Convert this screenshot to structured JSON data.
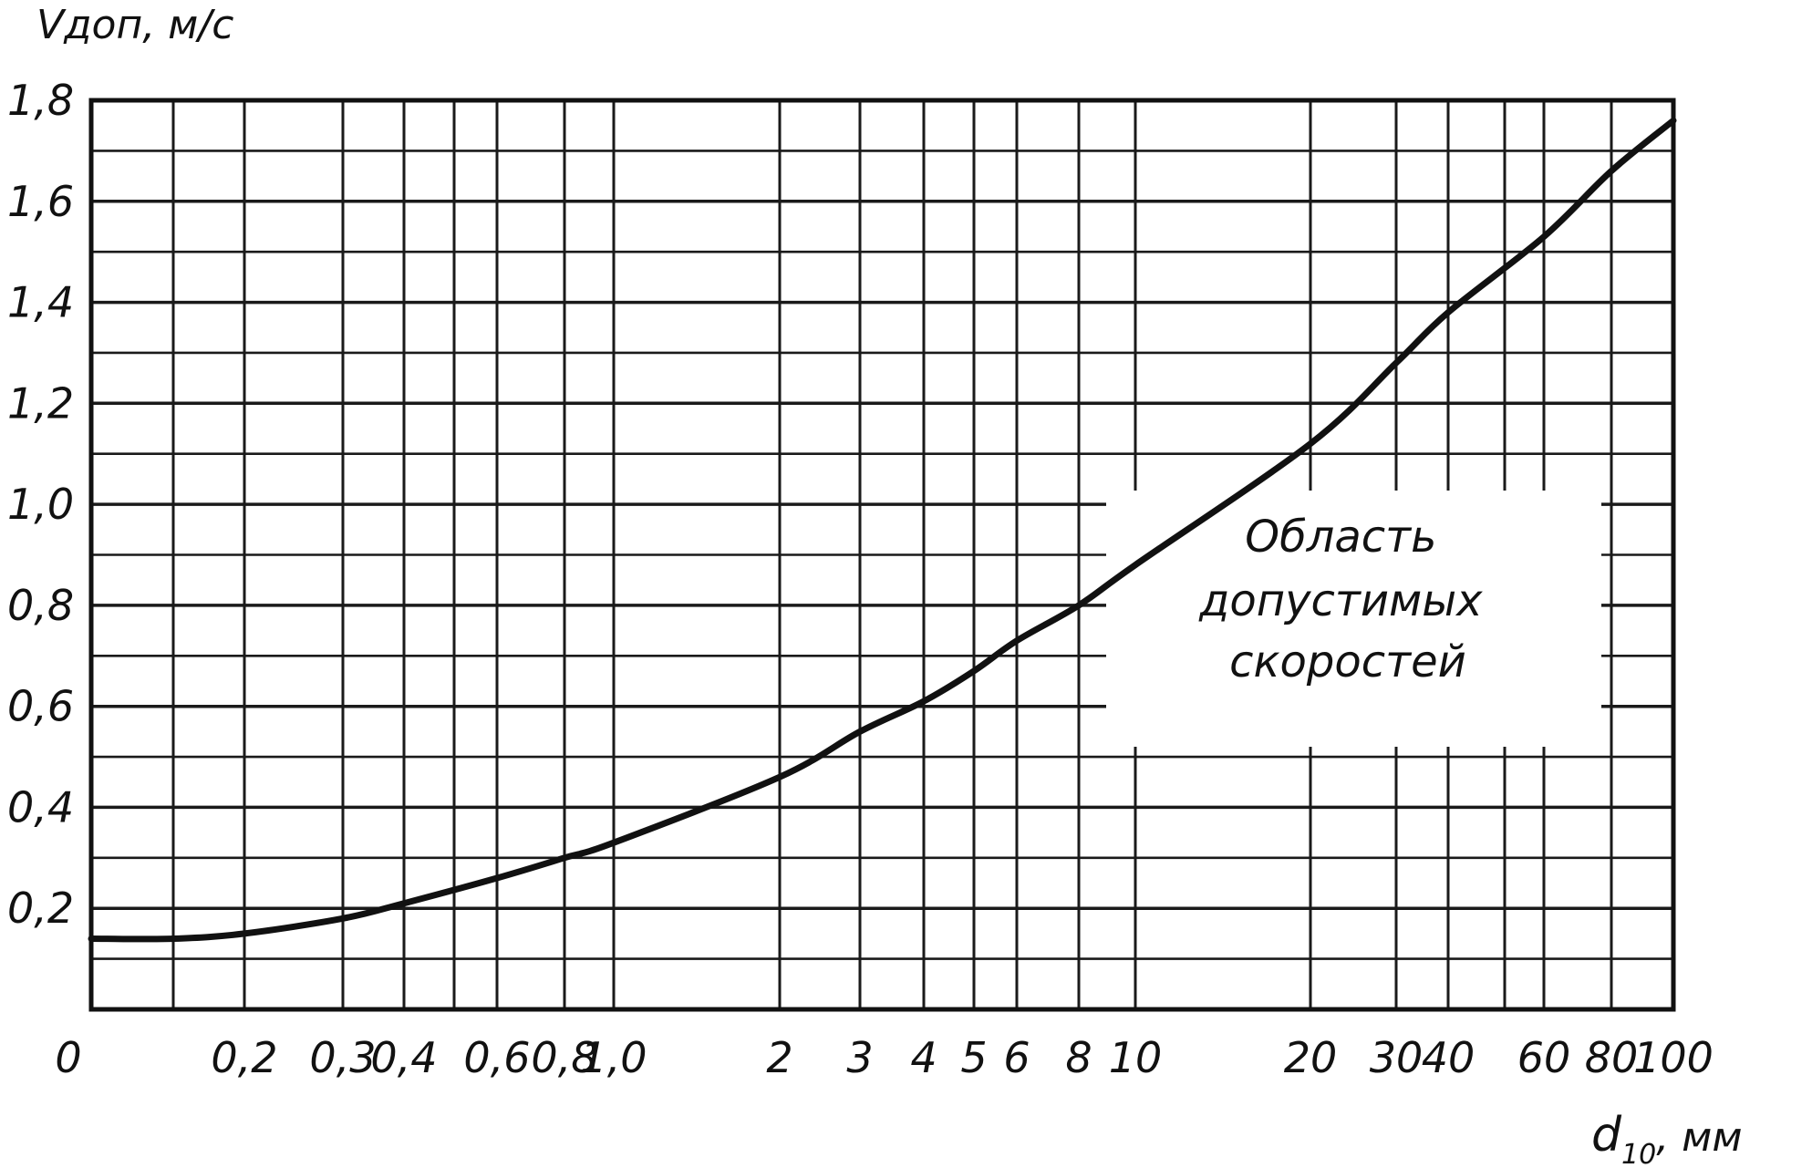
{
  "chart_data": {
    "type": "line",
    "title": "",
    "ylabel": "Vдоп, м/с",
    "xlabel_main": "d",
    "xlabel_sub": "10",
    "xlabel_unit": ", мм",
    "ylim": [
      0,
      1.8
    ],
    "y_ticks": [
      {
        "value": 0.2,
        "label": "0,2"
      },
      {
        "value": 0.4,
        "label": "0,4"
      },
      {
        "value": 0.6,
        "label": "0,6"
      },
      {
        "value": 0.8,
        "label": "0,8"
      },
      {
        "value": 1.0,
        "label": "1,0"
      },
      {
        "value": 1.2,
        "label": "1,2"
      },
      {
        "value": 1.4,
        "label": "1,4"
      },
      {
        "value": 1.6,
        "label": "1,6"
      },
      {
        "value": 1.8,
        "label": "1,8"
      }
    ],
    "x_ticks": [
      {
        "label": "0",
        "grid": false,
        "value": 0.13
      },
      {
        "label": "",
        "grid": true,
        "value": 0.15
      },
      {
        "label": "0,2",
        "grid": true,
        "value": 0.2
      },
      {
        "label": "0,3",
        "grid": true,
        "value": 0.3
      },
      {
        "label": "0,4",
        "grid": true,
        "value": 0.4
      },
      {
        "label": "",
        "grid": true,
        "value": 0.5
      },
      {
        "label": "0,6",
        "grid": true,
        "value": 0.6
      },
      {
        "label": "0,8",
        "grid": true,
        "value": 0.8
      },
      {
        "label": "1,0",
        "grid": true,
        "value": 1.0
      },
      {
        "label": "2",
        "grid": true,
        "value": 2
      },
      {
        "label": "3",
        "grid": true,
        "value": 3
      },
      {
        "label": "4",
        "grid": true,
        "value": 4
      },
      {
        "label": "5",
        "grid": true,
        "value": 5
      },
      {
        "label": "6",
        "grid": true,
        "value": 6
      },
      {
        "label": "8",
        "grid": true,
        "value": 8
      },
      {
        "label": "10",
        "grid": true,
        "value": 10
      },
      {
        "label": "20",
        "grid": true,
        "value": 20
      },
      {
        "label": "30",
        "grid": true,
        "value": 30
      },
      {
        "label": "40",
        "grid": true,
        "value": 40
      },
      {
        "label": "",
        "grid": true,
        "value": 50
      },
      {
        "label": "60",
        "grid": true,
        "value": 60
      },
      {
        "label": "80",
        "grid": true,
        "value": 80
      },
      {
        "label": "100",
        "grid": true,
        "value": 100
      }
    ],
    "series": [
      {
        "points": [
          {
            "x": 0.13,
            "y": 0.14
          },
          {
            "x": 0.15,
            "y": 0.14
          },
          {
            "x": 0.2,
            "y": 0.15
          },
          {
            "x": 0.3,
            "y": 0.18
          },
          {
            "x": 0.4,
            "y": 0.21
          },
          {
            "x": 0.6,
            "y": 0.26
          },
          {
            "x": 0.8,
            "y": 0.3
          },
          {
            "x": 1.0,
            "y": 0.33
          },
          {
            "x": 2,
            "y": 0.46
          },
          {
            "x": 3,
            "y": 0.55
          },
          {
            "x": 4,
            "y": 0.61
          },
          {
            "x": 5,
            "y": 0.67
          },
          {
            "x": 6,
            "y": 0.73
          },
          {
            "x": 8,
            "y": 0.8
          },
          {
            "x": 10,
            "y": 0.88
          },
          {
            "x": 20,
            "y": 1.12
          },
          {
            "x": 30,
            "y": 1.28
          },
          {
            "x": 40,
            "y": 1.38
          },
          {
            "x": 60,
            "y": 1.53
          },
          {
            "x": 80,
            "y": 1.66
          },
          {
            "x": 100,
            "y": 1.76
          }
        ]
      }
    ],
    "annotation": {
      "lines": [
        "Область",
        "допустимых",
        "скоростей"
      ]
    },
    "grid": true
  }
}
